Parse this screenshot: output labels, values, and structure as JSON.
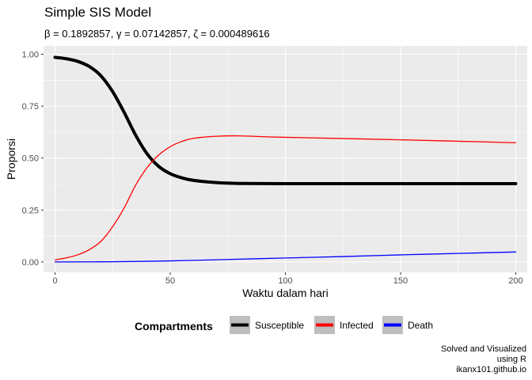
{
  "chart_data": {
    "type": "line",
    "title": "Simple SIS Model",
    "subtitle": "β = 0.1892857,  γ = 0.07142857,  ζ = 0.000489616",
    "xlabel": "Waktu dalam hari",
    "ylabel": "Proporsi",
    "xlim": [
      -5,
      205
    ],
    "ylim": [
      -0.05,
      1.04
    ],
    "x_ticks": [
      0,
      50,
      100,
      150,
      200
    ],
    "x_tick_labels": [
      "0",
      "50",
      "100",
      "150",
      "200"
    ],
    "y_ticks": [
      0,
      0.25,
      0.5,
      0.75,
      1.0
    ],
    "y_tick_labels": [
      "0.00",
      "0.25",
      "0.50",
      "0.75",
      "1.00"
    ],
    "grid": true,
    "legend": {
      "title": "Compartments",
      "position": "bottom"
    },
    "series": [
      {
        "name": "Susceptible",
        "color": "#000000",
        "x": [
          0,
          5,
          10,
          15,
          20,
          25,
          30,
          35,
          40,
          45,
          50,
          55,
          60,
          70,
          80,
          100,
          150,
          200
        ],
        "values": [
          0.985,
          0.978,
          0.965,
          0.94,
          0.895,
          0.82,
          0.72,
          0.61,
          0.52,
          0.46,
          0.425,
          0.405,
          0.393,
          0.382,
          0.378,
          0.377,
          0.377,
          0.377
        ]
      },
      {
        "name": "Infected",
        "color": "#ff0000",
        "x": [
          0,
          5,
          10,
          15,
          20,
          25,
          30,
          35,
          40,
          45,
          50,
          55,
          60,
          70,
          80,
          100,
          150,
          200
        ],
        "values": [
          0.01,
          0.02,
          0.035,
          0.06,
          0.1,
          0.17,
          0.26,
          0.37,
          0.455,
          0.515,
          0.555,
          0.58,
          0.595,
          0.605,
          0.607,
          0.6,
          0.588,
          0.574
        ]
      },
      {
        "name": "Death",
        "color": "#0000ff",
        "x": [
          0,
          25,
          50,
          75,
          100,
          125,
          150,
          175,
          200
        ],
        "values": [
          0.0,
          0.001,
          0.005,
          0.012,
          0.019,
          0.026,
          0.034,
          0.041,
          0.048
        ]
      }
    ]
  },
  "caption": [
    "Solved and Visualized",
    "using R",
    "ikanx101.github.io"
  ]
}
